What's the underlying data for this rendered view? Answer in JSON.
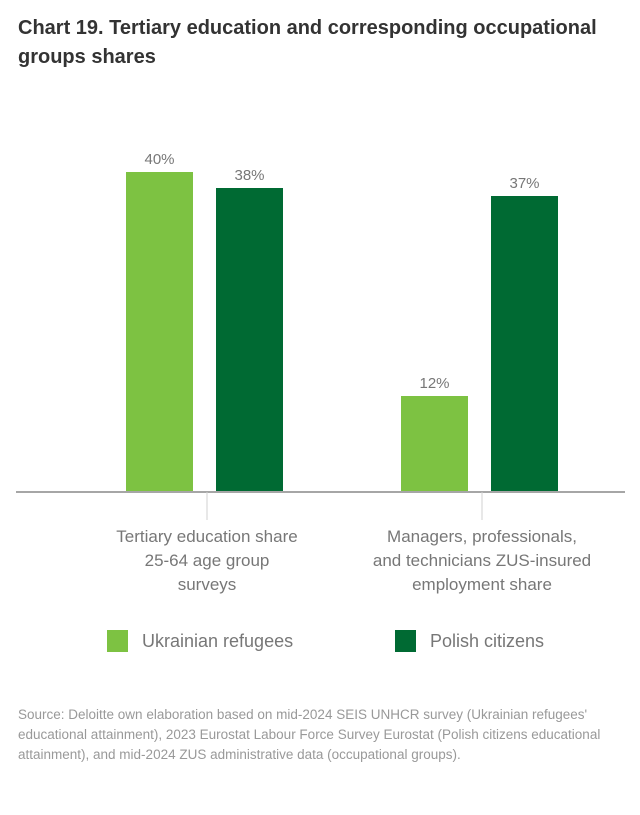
{
  "title": "Chart 19. Tertiary education and corresponding occupational groups shares",
  "chart_data": {
    "type": "bar",
    "title": "Chart 19. Tertiary education and corresponding occupational groups shares",
    "categories": [
      "Tertiary education share 25-64 age group surveys",
      "Managers, professionals, and technicians ZUS-insured employment share"
    ],
    "series": [
      {
        "name": "Ukrainian refugees",
        "values": [
          40,
          12
        ],
        "labels": [
          "40%",
          "12%"
        ],
        "color": "#7dc242"
      },
      {
        "name": "Polish citizens",
        "values": [
          38,
          37
        ],
        "labels": [
          "38%",
          "37%"
        ],
        "color": "#006a33"
      }
    ],
    "xlabel": "",
    "ylabel": "",
    "ylim": [
      0,
      40
    ],
    "grid": false,
    "legend": "bottom"
  },
  "category_lines": [
    [
      "Tertiary education share",
      "25-64 age group",
      "surveys"
    ],
    [
      "Managers, professionals,",
      "and technicians ZUS-insured",
      "employment share"
    ]
  ],
  "source": "Source: Deloitte own elaboration based on mid-2024 SEIS UNHCR survey (Ukrainian refugees' educational attainment), 2023 Eurostat Labour Force Survey Eurostat (Polish citizens educational attainment), and mid-2024 ZUS administrative data (occupational groups)."
}
